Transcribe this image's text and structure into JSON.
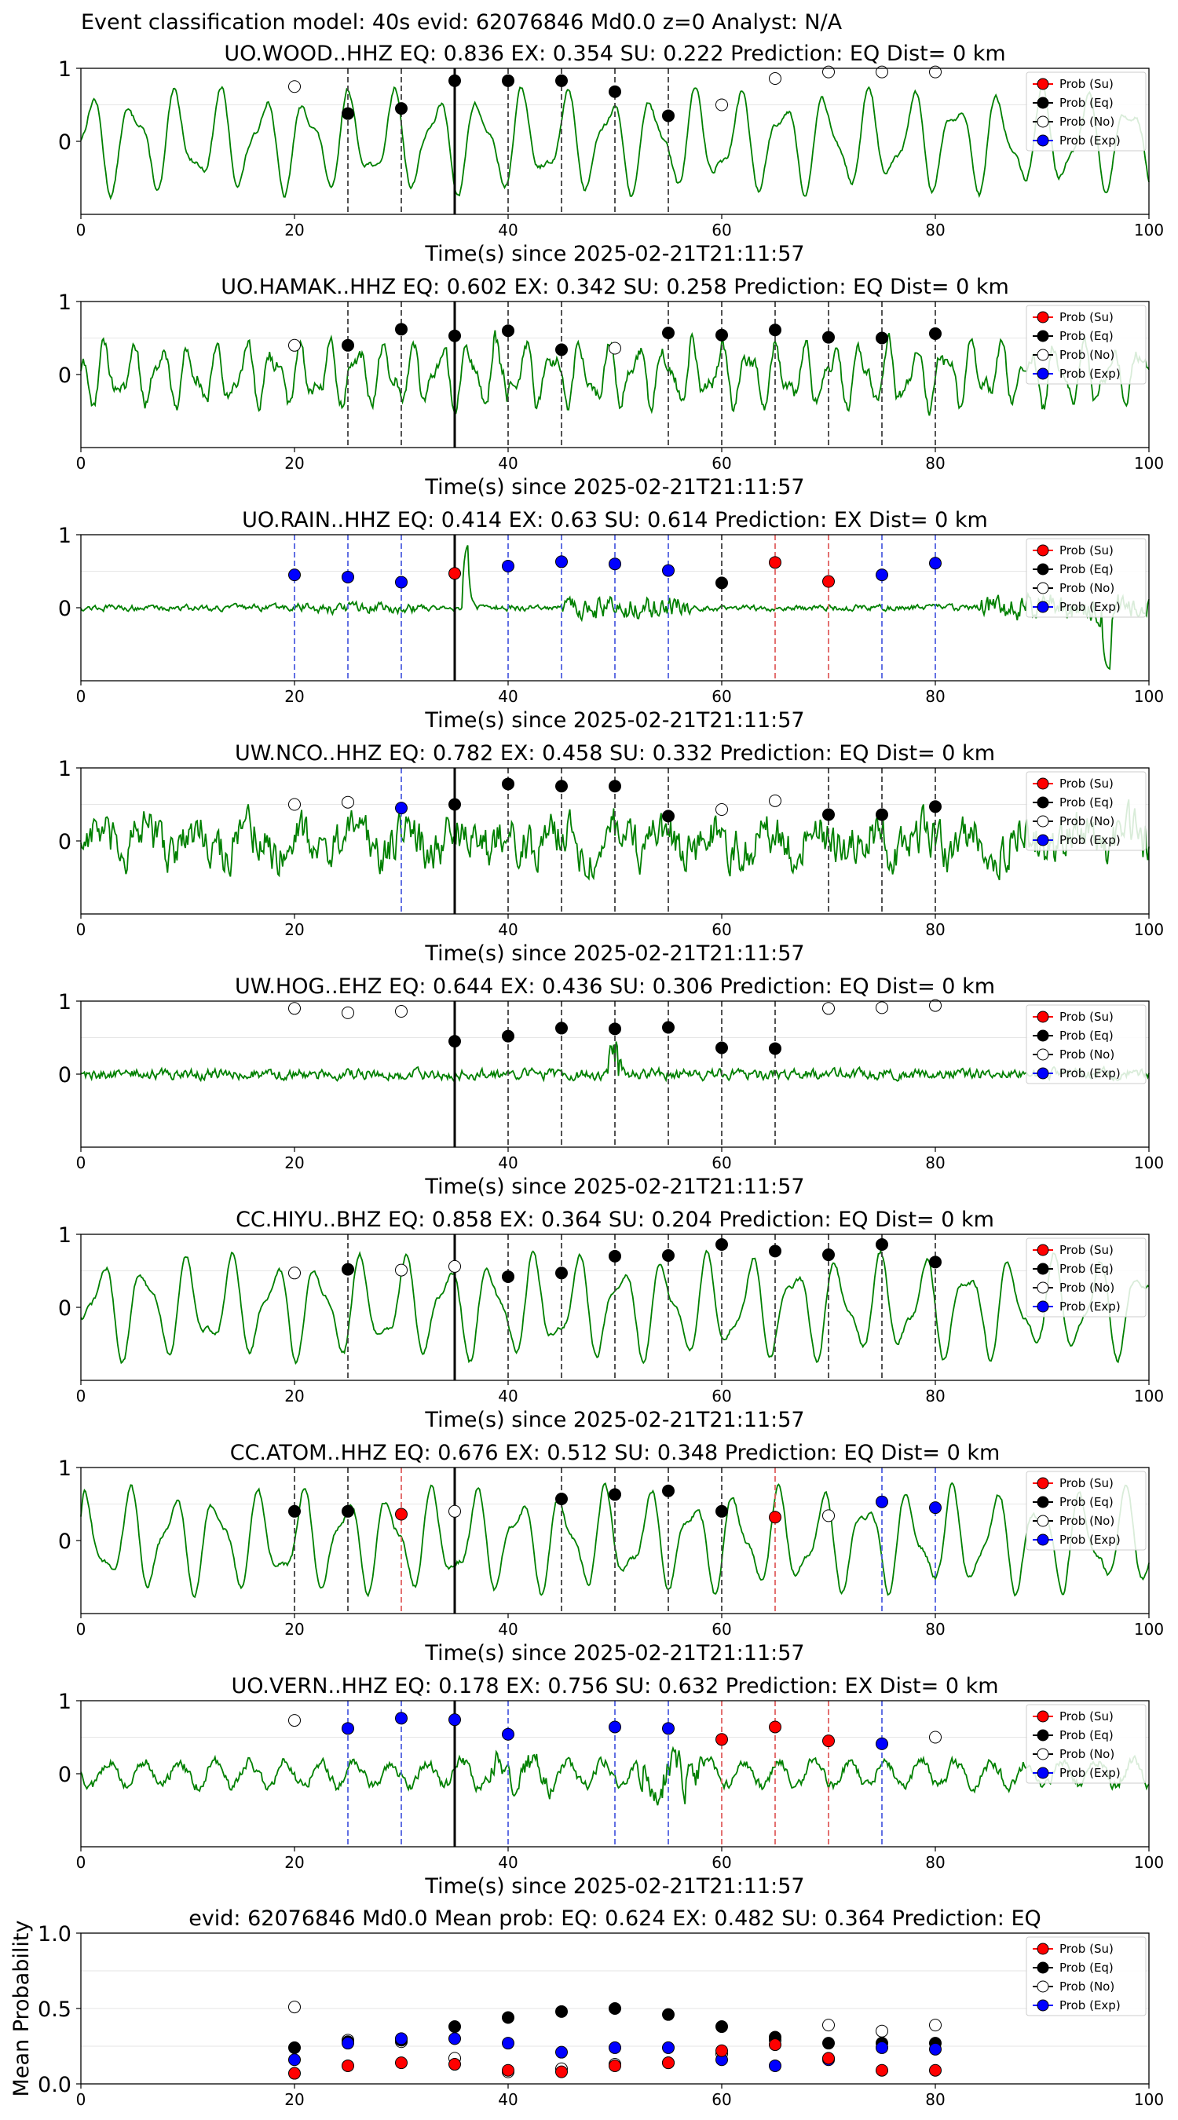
{
  "figure_title": "Event classification model: 40s evid: 62076846 Md0.0 z=0 Analyst: N/A",
  "colors": {
    "waveform": "#008000",
    "su": "#ff0000",
    "eq": "#000000",
    "no": "#ffffff",
    "exp": "#0000ff",
    "grid": "#e6e6e6",
    "vline_eq": "#404040",
    "vline_su": "#e06060",
    "vline_exp": "#5060e0"
  },
  "legend": [
    "Prob (Su)",
    "Prob (Eq)",
    "Prob (No)",
    "Prob (Exp)"
  ],
  "x_axis": {
    "label": "Time(s) since 2025-02-21T21:11:57",
    "ticks": [
      "0",
      "20",
      "40",
      "60",
      "80",
      "100"
    ]
  },
  "chart_data": [
    {
      "type": "line",
      "station": "UO.WOOD..HHZ",
      "title": "UO.WOOD..HHZ   EQ: 0.836  EX: 0.354  SU: 0.222   Prediction: EQ    Dist= 0 km",
      "xlim": [
        0,
        100
      ],
      "ylim": [
        -1,
        1
      ],
      "yticks": [
        "1",
        "0"
      ],
      "xlabel": "Time(s) since 2025-02-21T21:11:57",
      "pick_time": 35,
      "waveform_style": "lowfreq",
      "points": [
        {
          "x": 20,
          "y": 0.75,
          "cls": "no"
        },
        {
          "x": 25,
          "y": 0.38,
          "cls": "eq"
        },
        {
          "x": 30,
          "y": 0.45,
          "cls": "eq"
        },
        {
          "x": 35,
          "y": 0.83,
          "cls": "eq"
        },
        {
          "x": 40,
          "y": 0.83,
          "cls": "eq"
        },
        {
          "x": 45,
          "y": 0.83,
          "cls": "eq"
        },
        {
          "x": 50,
          "y": 0.68,
          "cls": "eq"
        },
        {
          "x": 55,
          "y": 0.35,
          "cls": "eq"
        },
        {
          "x": 60,
          "y": 0.5,
          "cls": "no"
        },
        {
          "x": 65,
          "y": 0.86,
          "cls": "no"
        },
        {
          "x": 70,
          "y": 0.95,
          "cls": "no"
        },
        {
          "x": 75,
          "y": 0.95,
          "cls": "no"
        },
        {
          "x": 80,
          "y": 0.95,
          "cls": "no"
        }
      ]
    },
    {
      "type": "line",
      "station": "UO.HAMAK..HHZ",
      "title": "UO.HAMAK..HHZ   EQ: 0.602  EX: 0.342  SU: 0.258   Prediction: EQ    Dist= 0 km",
      "xlim": [
        0,
        100
      ],
      "ylim": [
        -1,
        1
      ],
      "yticks": [
        "1",
        "0"
      ],
      "xlabel": "Time(s) since 2025-02-21T21:11:57",
      "pick_time": 35,
      "waveform_style": "midfreq",
      "points": [
        {
          "x": 20,
          "y": 0.4,
          "cls": "no"
        },
        {
          "x": 25,
          "y": 0.4,
          "cls": "eq"
        },
        {
          "x": 30,
          "y": 0.62,
          "cls": "eq"
        },
        {
          "x": 35,
          "y": 0.53,
          "cls": "eq"
        },
        {
          "x": 40,
          "y": 0.6,
          "cls": "eq"
        },
        {
          "x": 45,
          "y": 0.34,
          "cls": "eq"
        },
        {
          "x": 50,
          "y": 0.36,
          "cls": "no"
        },
        {
          "x": 55,
          "y": 0.57,
          "cls": "eq"
        },
        {
          "x": 60,
          "y": 0.54,
          "cls": "eq"
        },
        {
          "x": 65,
          "y": 0.61,
          "cls": "eq"
        },
        {
          "x": 70,
          "y": 0.51,
          "cls": "eq"
        },
        {
          "x": 75,
          "y": 0.5,
          "cls": "eq"
        },
        {
          "x": 80,
          "y": 0.56,
          "cls": "eq"
        }
      ]
    },
    {
      "type": "line",
      "station": "UO.RAIN..HHZ",
      "title": "UO.RAIN..HHZ   EQ: 0.414  EX: 0.63  SU: 0.614   Prediction: EX    Dist= 0 km",
      "xlim": [
        0,
        100
      ],
      "ylim": [
        -1,
        1
      ],
      "yticks": [
        "1",
        "0"
      ],
      "xlabel": "Time(s) since 2025-02-21T21:11:57",
      "pick_time": 35,
      "waveform_style": "quiet",
      "points": [
        {
          "x": 20,
          "y": 0.45,
          "cls": "exp"
        },
        {
          "x": 25,
          "y": 0.42,
          "cls": "exp"
        },
        {
          "x": 30,
          "y": 0.35,
          "cls": "exp"
        },
        {
          "x": 35,
          "y": 0.47,
          "cls": "su"
        },
        {
          "x": 40,
          "y": 0.57,
          "cls": "exp"
        },
        {
          "x": 45,
          "y": 0.63,
          "cls": "exp"
        },
        {
          "x": 50,
          "y": 0.6,
          "cls": "exp"
        },
        {
          "x": 55,
          "y": 0.51,
          "cls": "exp"
        },
        {
          "x": 60,
          "y": 0.34,
          "cls": "eq"
        },
        {
          "x": 65,
          "y": 0.62,
          "cls": "su"
        },
        {
          "x": 70,
          "y": 0.36,
          "cls": "su"
        },
        {
          "x": 75,
          "y": 0.45,
          "cls": "exp"
        },
        {
          "x": 80,
          "y": 0.61,
          "cls": "exp"
        }
      ]
    },
    {
      "type": "line",
      "station": "UW.NCO..HHZ",
      "title": "UW.NCO..HHZ   EQ: 0.782  EX: 0.458  SU: 0.332   Prediction: EQ    Dist= 0 km",
      "xlim": [
        0,
        100
      ],
      "ylim": [
        -1,
        1
      ],
      "yticks": [
        "1",
        "0"
      ],
      "xlabel": "Time(s) since 2025-02-21T21:11:57",
      "pick_time": 35,
      "waveform_style": "noisy",
      "points": [
        {
          "x": 20,
          "y": 0.5,
          "cls": "no"
        },
        {
          "x": 25,
          "y": 0.53,
          "cls": "no"
        },
        {
          "x": 30,
          "y": 0.45,
          "cls": "exp"
        },
        {
          "x": 35,
          "y": 0.5,
          "cls": "eq"
        },
        {
          "x": 40,
          "y": 0.78,
          "cls": "eq"
        },
        {
          "x": 45,
          "y": 0.75,
          "cls": "eq"
        },
        {
          "x": 50,
          "y": 0.75,
          "cls": "eq"
        },
        {
          "x": 55,
          "y": 0.34,
          "cls": "eq"
        },
        {
          "x": 60,
          "y": 0.43,
          "cls": "no"
        },
        {
          "x": 65,
          "y": 0.55,
          "cls": "no"
        },
        {
          "x": 70,
          "y": 0.36,
          "cls": "eq"
        },
        {
          "x": 75,
          "y": 0.36,
          "cls": "eq"
        },
        {
          "x": 80,
          "y": 0.47,
          "cls": "eq"
        }
      ]
    },
    {
      "type": "line",
      "station": "UW.HOG..EHZ",
      "title": "UW.HOG..EHZ   EQ: 0.644  EX: 0.436  SU: 0.306   Prediction: EQ    Dist= 0 km",
      "xlim": [
        0,
        100
      ],
      "ylim": [
        -1,
        1
      ],
      "yticks": [
        "1",
        "0"
      ],
      "xlabel": "Time(s) since 2025-02-21T21:11:57",
      "pick_time": 35,
      "waveform_style": "band",
      "points": [
        {
          "x": 20,
          "y": 0.9,
          "cls": "no"
        },
        {
          "x": 25,
          "y": 0.84,
          "cls": "no"
        },
        {
          "x": 30,
          "y": 0.86,
          "cls": "no"
        },
        {
          "x": 35,
          "y": 0.45,
          "cls": "eq"
        },
        {
          "x": 40,
          "y": 0.52,
          "cls": "eq"
        },
        {
          "x": 45,
          "y": 0.63,
          "cls": "eq"
        },
        {
          "x": 50,
          "y": 0.62,
          "cls": "eq"
        },
        {
          "x": 55,
          "y": 0.64,
          "cls": "eq"
        },
        {
          "x": 60,
          "y": 0.36,
          "cls": "eq"
        },
        {
          "x": 65,
          "y": 0.35,
          "cls": "eq"
        },
        {
          "x": 70,
          "y": 0.9,
          "cls": "no"
        },
        {
          "x": 75,
          "y": 0.91,
          "cls": "no"
        },
        {
          "x": 80,
          "y": 0.94,
          "cls": "no"
        }
      ]
    },
    {
      "type": "line",
      "station": "CC.HIYU..BHZ",
      "title": "CC.HIYU..BHZ   EQ: 0.858  EX: 0.364  SU: 0.204   Prediction: EQ    Dist= 0 km",
      "xlim": [
        0,
        100
      ],
      "ylim": [
        -1,
        1
      ],
      "yticks": [
        "1",
        "0"
      ],
      "xlabel": "Time(s) since 2025-02-21T21:11:57",
      "pick_time": 35,
      "waveform_style": "lowfreq",
      "points": [
        {
          "x": 20,
          "y": 0.47,
          "cls": "no"
        },
        {
          "x": 25,
          "y": 0.52,
          "cls": "eq"
        },
        {
          "x": 30,
          "y": 0.51,
          "cls": "no"
        },
        {
          "x": 35,
          "y": 0.56,
          "cls": "no"
        },
        {
          "x": 40,
          "y": 0.42,
          "cls": "eq"
        },
        {
          "x": 45,
          "y": 0.47,
          "cls": "eq"
        },
        {
          "x": 50,
          "y": 0.7,
          "cls": "eq"
        },
        {
          "x": 55,
          "y": 0.71,
          "cls": "eq"
        },
        {
          "x": 60,
          "y": 0.86,
          "cls": "eq"
        },
        {
          "x": 65,
          "y": 0.77,
          "cls": "eq"
        },
        {
          "x": 70,
          "y": 0.72,
          "cls": "eq"
        },
        {
          "x": 75,
          "y": 0.86,
          "cls": "eq"
        },
        {
          "x": 80,
          "y": 0.62,
          "cls": "eq"
        }
      ]
    },
    {
      "type": "line",
      "station": "CC.ATOM..HHZ",
      "title": "CC.ATOM..HHZ   EQ: 0.676  EX: 0.512  SU: 0.348   Prediction: EQ    Dist= 0 km",
      "xlim": [
        0,
        100
      ],
      "ylim": [
        -1,
        1
      ],
      "yticks": [
        "1",
        "0"
      ],
      "xlabel": "Time(s) since 2025-02-21T21:11:57",
      "pick_time": 35,
      "waveform_style": "lowfreq",
      "points": [
        {
          "x": 20,
          "y": 0.4,
          "cls": "eq"
        },
        {
          "x": 25,
          "y": 0.4,
          "cls": "eq"
        },
        {
          "x": 30,
          "y": 0.36,
          "cls": "su"
        },
        {
          "x": 35,
          "y": 0.4,
          "cls": "no"
        },
        {
          "x": 45,
          "y": 0.57,
          "cls": "eq"
        },
        {
          "x": 50,
          "y": 0.63,
          "cls": "eq"
        },
        {
          "x": 55,
          "y": 0.68,
          "cls": "eq"
        },
        {
          "x": 60,
          "y": 0.4,
          "cls": "eq"
        },
        {
          "x": 65,
          "y": 0.32,
          "cls": "su"
        },
        {
          "x": 70,
          "y": 0.34,
          "cls": "no"
        },
        {
          "x": 75,
          "y": 0.53,
          "cls": "exp"
        },
        {
          "x": 80,
          "y": 0.45,
          "cls": "exp"
        }
      ]
    },
    {
      "type": "line",
      "station": "UO.VERN..HHZ",
      "title": "UO.VERN..HHZ   EQ: 0.178  EX: 0.756  SU: 0.632   Prediction: EX    Dist= 0 km",
      "xlim": [
        0,
        100
      ],
      "ylim": [
        -1,
        1
      ],
      "yticks": [
        "1",
        "0"
      ],
      "xlabel": "Time(s) since 2025-02-21T21:11:57",
      "pick_time": 35,
      "waveform_style": "midquiet",
      "points": [
        {
          "x": 20,
          "y": 0.73,
          "cls": "no"
        },
        {
          "x": 25,
          "y": 0.62,
          "cls": "exp"
        },
        {
          "x": 30,
          "y": 0.76,
          "cls": "exp"
        },
        {
          "x": 35,
          "y": 0.74,
          "cls": "exp"
        },
        {
          "x": 40,
          "y": 0.54,
          "cls": "exp"
        },
        {
          "x": 50,
          "y": 0.64,
          "cls": "exp"
        },
        {
          "x": 55,
          "y": 0.62,
          "cls": "exp"
        },
        {
          "x": 60,
          "y": 0.47,
          "cls": "su"
        },
        {
          "x": 65,
          "y": 0.64,
          "cls": "su"
        },
        {
          "x": 70,
          "y": 0.45,
          "cls": "su"
        },
        {
          "x": 75,
          "y": 0.41,
          "cls": "exp"
        },
        {
          "x": 80,
          "y": 0.5,
          "cls": "no"
        }
      ]
    },
    {
      "type": "scatter",
      "title": "evid: 62076846  Md0.0   Mean prob:   EQ: 0.624  EX: 0.482  SU: 0.364   Prediction: EQ",
      "ylabel": "Mean Probability",
      "xlim": [
        0,
        100
      ],
      "ylim": [
        0,
        1
      ],
      "yticks": [
        "1.0",
        "0.5",
        "0.0"
      ],
      "x": [
        20,
        25,
        30,
        35,
        40,
        45,
        50,
        55,
        60,
        65,
        70,
        75,
        80
      ],
      "series": [
        {
          "name": "Prob (No)",
          "cls": "no",
          "values": [
            0.51,
            0.29,
            0.28,
            0.17,
            0.08,
            0.1,
            0.13,
            0.14,
            0.2,
            0.29,
            0.39,
            0.35,
            0.39
          ]
        },
        {
          "name": "Prob (Eq)",
          "cls": "eq",
          "values": [
            0.24,
            0.28,
            0.29,
            0.38,
            0.44,
            0.48,
            0.5,
            0.46,
            0.38,
            0.31,
            0.27,
            0.27,
            0.27
          ]
        },
        {
          "name": "Prob (Exp)",
          "cls": "exp",
          "values": [
            0.16,
            0.27,
            0.3,
            0.3,
            0.27,
            0.21,
            0.24,
            0.24,
            0.16,
            0.12,
            0.16,
            0.24,
            0.23
          ]
        },
        {
          "name": "Prob (Su)",
          "cls": "su",
          "values": [
            0.07,
            0.12,
            0.14,
            0.13,
            0.09,
            0.08,
            0.12,
            0.14,
            0.22,
            0.26,
            0.17,
            0.09,
            0.09
          ]
        }
      ]
    }
  ]
}
